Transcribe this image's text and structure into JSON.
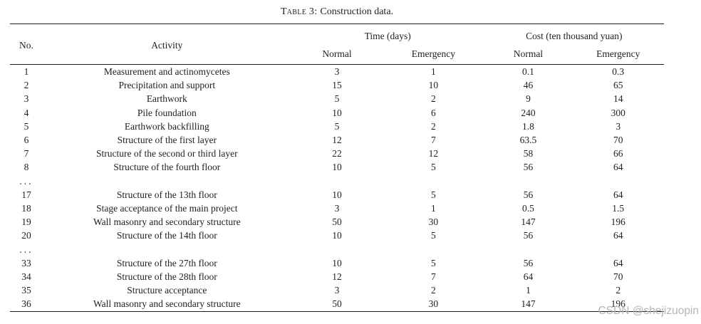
{
  "caption": {
    "label": "Table 3:",
    "text": "Construction data."
  },
  "colors": {
    "text": "#1f1f1f",
    "rule": "#1c1c1c",
    "watermark": "#b5b5b9"
  },
  "watermark": {
    "text": "CSDN @shejizuopin"
  },
  "table": {
    "header": {
      "no": "No.",
      "activity": "Activity",
      "time_group": "Time (days)",
      "cost_group": "Cost (ten thousand yuan)",
      "normal": "Normal",
      "emergency": "Emergency"
    },
    "rows": [
      {
        "no": "1",
        "activity": "Measurement and actinomycetes",
        "time_normal": "3",
        "time_emergency": "1",
        "cost_normal": "0.1",
        "cost_emergency": "0.3"
      },
      {
        "no": "2",
        "activity": "Precipitation and support",
        "time_normal": "15",
        "time_emergency": "10",
        "cost_normal": "46",
        "cost_emergency": "65"
      },
      {
        "no": "3",
        "activity": "Earthwork",
        "time_normal": "5",
        "time_emergency": "2",
        "cost_normal": "9",
        "cost_emergency": "14"
      },
      {
        "no": "4",
        "activity": "Pile foundation",
        "time_normal": "10",
        "time_emergency": "6",
        "cost_normal": "240",
        "cost_emergency": "300"
      },
      {
        "no": "5",
        "activity": "Earthwork backfilling",
        "time_normal": "5",
        "time_emergency": "2",
        "cost_normal": "1.8",
        "cost_emergency": "3"
      },
      {
        "no": "6",
        "activity": "Structure of the first layer",
        "time_normal": "12",
        "time_emergency": "7",
        "cost_normal": "63.5",
        "cost_emergency": "70"
      },
      {
        "no": "7",
        "activity": "Structure of the second or third layer",
        "time_normal": "22",
        "time_emergency": "12",
        "cost_normal": "58",
        "cost_emergency": "66"
      },
      {
        "no": "8",
        "activity": "Structure of the fourth floor",
        "time_normal": "10",
        "time_emergency": "5",
        "cost_normal": "56",
        "cost_emergency": "64"
      },
      {
        "no": "...",
        "ellipsis": true,
        "activity": "",
        "time_normal": "",
        "time_emergency": "",
        "cost_normal": "",
        "cost_emergency": ""
      },
      {
        "no": "17",
        "activity": "Structure of the 13th floor",
        "time_normal": "10",
        "time_emergency": "5",
        "cost_normal": "56",
        "cost_emergency": "64"
      },
      {
        "no": "18",
        "activity": "Stage acceptance of the main project",
        "time_normal": "3",
        "time_emergency": "1",
        "cost_normal": "0.5",
        "cost_emergency": "1.5"
      },
      {
        "no": "19",
        "activity": "Wall masonry and secondary structure",
        "time_normal": "50",
        "time_emergency": "30",
        "cost_normal": "147",
        "cost_emergency": "196"
      },
      {
        "no": "20",
        "activity": "Structure of the 14th floor",
        "time_normal": "10",
        "time_emergency": "5",
        "cost_normal": "56",
        "cost_emergency": "64"
      },
      {
        "no": "...",
        "ellipsis": true,
        "activity": "",
        "time_normal": "",
        "time_emergency": "",
        "cost_normal": "",
        "cost_emergency": ""
      },
      {
        "no": "33",
        "activity": "Structure of the 27th floor",
        "time_normal": "10",
        "time_emergency": "5",
        "cost_normal": "56",
        "cost_emergency": "64"
      },
      {
        "no": "34",
        "activity": "Structure of the 28th floor",
        "time_normal": "12",
        "time_emergency": "7",
        "cost_normal": "64",
        "cost_emergency": "70"
      },
      {
        "no": "35",
        "activity": "Structure acceptance",
        "time_normal": "3",
        "time_emergency": "2",
        "cost_normal": "1",
        "cost_emergency": "2"
      },
      {
        "no": "36",
        "activity": "Wall masonry and secondary structure",
        "time_normal": "50",
        "time_emergency": "30",
        "cost_normal": "147",
        "cost_emergency": "196"
      }
    ]
  }
}
